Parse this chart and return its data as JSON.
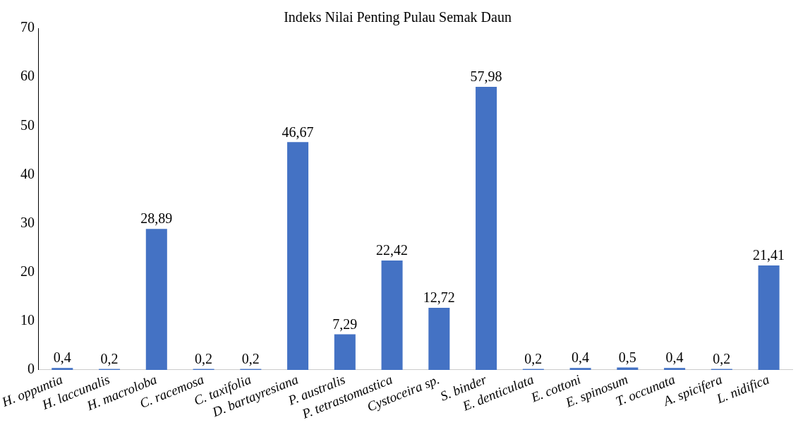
{
  "chart_data": {
    "type": "bar",
    "title": "Indeks Nilai Penting Pulau Semak Daun",
    "categories": [
      "H. oppuntia",
      "H. laccunalis",
      "H. macroloba",
      "C. racemosa",
      "C. taxifolia",
      "D. bartayresiana",
      "P. australis",
      "P. tetrastomastica",
      "Cystoceira sp.",
      "S. binder",
      "E. denticulata",
      "E. cottoni",
      "E. spinosum",
      "T. occunata",
      "A. spicifera",
      "L. nidifica"
    ],
    "values": [
      0.4,
      0.2,
      28.89,
      0.2,
      0.2,
      46.67,
      7.29,
      22.42,
      12.72,
      57.98,
      0.2,
      0.4,
      0.5,
      0.4,
      0.2,
      21.41
    ],
    "value_labels": [
      "0,4",
      "0,2",
      "28,89",
      "0,2",
      "0,2",
      "46,67",
      "7,29",
      "22,42",
      "12,72",
      "57,98",
      "0,2",
      "0,4",
      "0,5",
      "0,4",
      "0,2",
      "21,41"
    ],
    "color": "#4472c4",
    "ylim": [
      0,
      70
    ],
    "yticks": [
      0,
      10,
      20,
      30,
      40,
      50,
      60,
      70
    ],
    "grid": false,
    "legend": false
  }
}
